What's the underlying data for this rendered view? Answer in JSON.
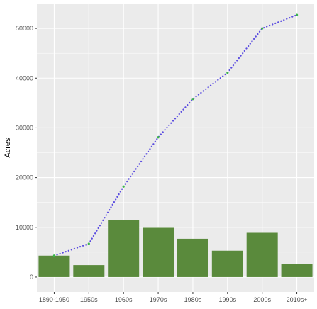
{
  "chart_data": {
    "type": "bar",
    "categories": [
      "1890-1950",
      "1950s",
      "1960s",
      "1970s",
      "1980s",
      "1990s",
      "2000s",
      "2010s+"
    ],
    "ylabel": "Acres",
    "xlabel": "",
    "ylim": [
      -3000,
      55000
    ],
    "yticks": [
      0,
      10000,
      20000,
      30000,
      40000,
      50000
    ],
    "grid": true,
    "series": [
      {
        "type": "bar",
        "values": [
          4300,
          2400,
          11500,
          9900,
          7700,
          5300,
          8900,
          2700
        ]
      },
      {
        "type": "line",
        "style": "dotted",
        "values": [
          4300,
          6700,
          18200,
          28100,
          35800,
          41100,
          50000,
          52700
        ]
      }
    ],
    "colors": {
      "bar": "#5a8a3c",
      "line": "#5b4de0",
      "point": "#3cb44b",
      "panel": "#ebebeb",
      "grid": "#ffffff"
    }
  }
}
